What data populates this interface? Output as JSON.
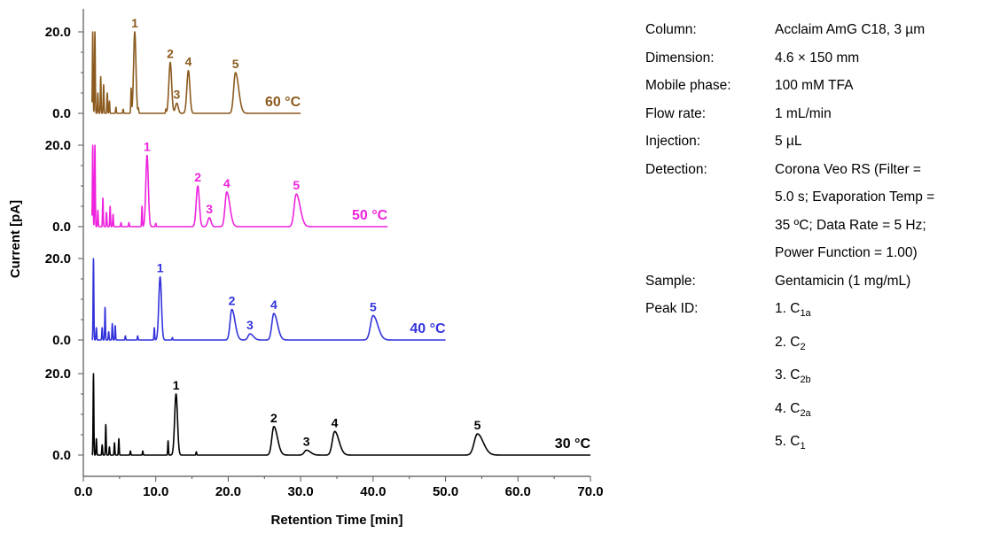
{
  "chart_data": {
    "type": "line",
    "xlabel": "Retention Time [min]",
    "ylabel": "Current [pA]",
    "xlim": [
      0,
      70
    ],
    "x_ticks": [
      "0.0",
      "10.0",
      "20.0",
      "30.0",
      "40.0",
      "50.0",
      "60.0",
      "70.0"
    ],
    "y_ticks": [
      "0.0",
      "20.0"
    ],
    "panels": [
      {
        "temperature_label": "60 °C",
        "color": "#8B5A1E",
        "x_end": 30,
        "peaks": [
          {
            "id": "1",
            "x": 7.1,
            "height": 20.0
          },
          {
            "id": "2",
            "x": 12.0,
            "height": 12.5
          },
          {
            "id": "3",
            "x": 12.9,
            "height": 2.5
          },
          {
            "id": "4",
            "x": 14.5,
            "height": 10.5
          },
          {
            "id": "5",
            "x": 21.0,
            "height": 10.0
          }
        ],
        "spikes": [
          {
            "x": 1.3,
            "height": 20.0
          },
          {
            "x": 1.6,
            "height": 20.0
          },
          {
            "x": 2.0,
            "height": 5
          },
          {
            "x": 2.4,
            "height": 9
          },
          {
            "x": 2.8,
            "height": 7
          },
          {
            "x": 3.3,
            "height": 5
          },
          {
            "x": 3.6,
            "height": 3
          },
          {
            "x": 4.5,
            "height": 1.5
          },
          {
            "x": 5.5,
            "height": 1
          },
          {
            "x": 6.6,
            "height": 6
          },
          {
            "x": 7.6,
            "height": 1.2
          },
          {
            "x": 11.4,
            "height": 1
          }
        ]
      },
      {
        "temperature_label": "50 °C",
        "color": "#EE22DD",
        "x_end": 42,
        "peaks": [
          {
            "id": "1",
            "x": 8.8,
            "height": 17.5
          },
          {
            "id": "2",
            "x": 15.8,
            "height": 10.0
          },
          {
            "id": "3",
            "x": 17.4,
            "height": 2.2
          },
          {
            "id": "4",
            "x": 19.8,
            "height": 8.5
          },
          {
            "id": "5",
            "x": 29.4,
            "height": 8.0
          }
        ],
        "spikes": [
          {
            "x": 1.3,
            "height": 20.0
          },
          {
            "x": 1.6,
            "height": 20.0
          },
          {
            "x": 2.0,
            "height": 4
          },
          {
            "x": 2.7,
            "height": 7
          },
          {
            "x": 3.2,
            "height": 3.5
          },
          {
            "x": 3.7,
            "height": 5
          },
          {
            "x": 4.1,
            "height": 3
          },
          {
            "x": 5.2,
            "height": 1
          },
          {
            "x": 6.3,
            "height": 1
          },
          {
            "x": 8.1,
            "height": 5
          },
          {
            "x": 10.0,
            "height": 0.8
          }
        ]
      },
      {
        "temperature_label": "40 °C",
        "color": "#3333DD",
        "x_end": 50,
        "peaks": [
          {
            "id": "1",
            "x": 10.6,
            "height": 15.5
          },
          {
            "id": "2",
            "x": 20.5,
            "height": 7.5
          },
          {
            "id": "3",
            "x": 23.0,
            "height": 1.5
          },
          {
            "id": "4",
            "x": 26.3,
            "height": 6.5
          },
          {
            "id": "5",
            "x": 40.0,
            "height": 6.0
          }
        ],
        "spikes": [
          {
            "x": 1.4,
            "height": 20.0
          },
          {
            "x": 1.8,
            "height": 3
          },
          {
            "x": 2.6,
            "height": 3
          },
          {
            "x": 3.0,
            "height": 8
          },
          {
            "x": 3.5,
            "height": 2
          },
          {
            "x": 4.0,
            "height": 4
          },
          {
            "x": 4.4,
            "height": 3.5
          },
          {
            "x": 5.8,
            "height": 1
          },
          {
            "x": 7.5,
            "height": 1
          },
          {
            "x": 9.8,
            "height": 3
          },
          {
            "x": 12.3,
            "height": 0.6
          }
        ]
      },
      {
        "temperature_label": "30 °C",
        "color": "#000000",
        "x_end": 70,
        "peaks": [
          {
            "id": "1",
            "x": 12.8,
            "height": 15.0
          },
          {
            "id": "2",
            "x": 26.3,
            "height": 7.0
          },
          {
            "id": "3",
            "x": 30.8,
            "height": 1.2
          },
          {
            "id": "4",
            "x": 34.7,
            "height": 5.8
          },
          {
            "id": "5",
            "x": 54.4,
            "height": 5.2
          }
        ],
        "spikes": [
          {
            "x": 1.4,
            "height": 20.0
          },
          {
            "x": 1.8,
            "height": 4
          },
          {
            "x": 2.6,
            "height": 2.5
          },
          {
            "x": 3.1,
            "height": 7.5
          },
          {
            "x": 3.6,
            "height": 2
          },
          {
            "x": 4.3,
            "height": 3
          },
          {
            "x": 4.9,
            "height": 4
          },
          {
            "x": 6.5,
            "height": 1
          },
          {
            "x": 8.2,
            "height": 1
          },
          {
            "x": 11.7,
            "height": 3.5
          },
          {
            "x": 15.6,
            "height": 0.8
          }
        ]
      }
    ]
  },
  "info": {
    "rows": [
      {
        "label": "Column:",
        "value": [
          "Acclaim AmG C18, 3 µm"
        ]
      },
      {
        "label": "Dimension:",
        "value": [
          "4.6 × 150 mm"
        ]
      },
      {
        "label": "Mobile phase:",
        "value": [
          "100 mM TFA"
        ]
      },
      {
        "label": "Flow rate:",
        "value": [
          "1 mL/min"
        ]
      },
      {
        "label": "Injection:",
        "value": [
          "5 µL"
        ]
      },
      {
        "label": "Detection:",
        "value": [
          "Corona Veo RS (Filter =",
          "5.0 s; Evaporation Temp =",
          "35 ºC; Data Rate = 5 Hz;",
          "Power Function = 1.00)"
        ]
      },
      {
        "label": "Sample:",
        "value": [
          "Gentamicin (1 mg/mL)"
        ]
      },
      {
        "label": "Peak ID:",
        "value": []
      }
    ],
    "peak_ids": [
      {
        "num": "1. C",
        "sub": "1a"
      },
      {
        "num": "2. C",
        "sub": "2"
      },
      {
        "num": "3. C",
        "sub": "2b"
      },
      {
        "num": "4. C",
        "sub": "2a"
      },
      {
        "num": "5. C",
        "sub": "1"
      }
    ]
  }
}
